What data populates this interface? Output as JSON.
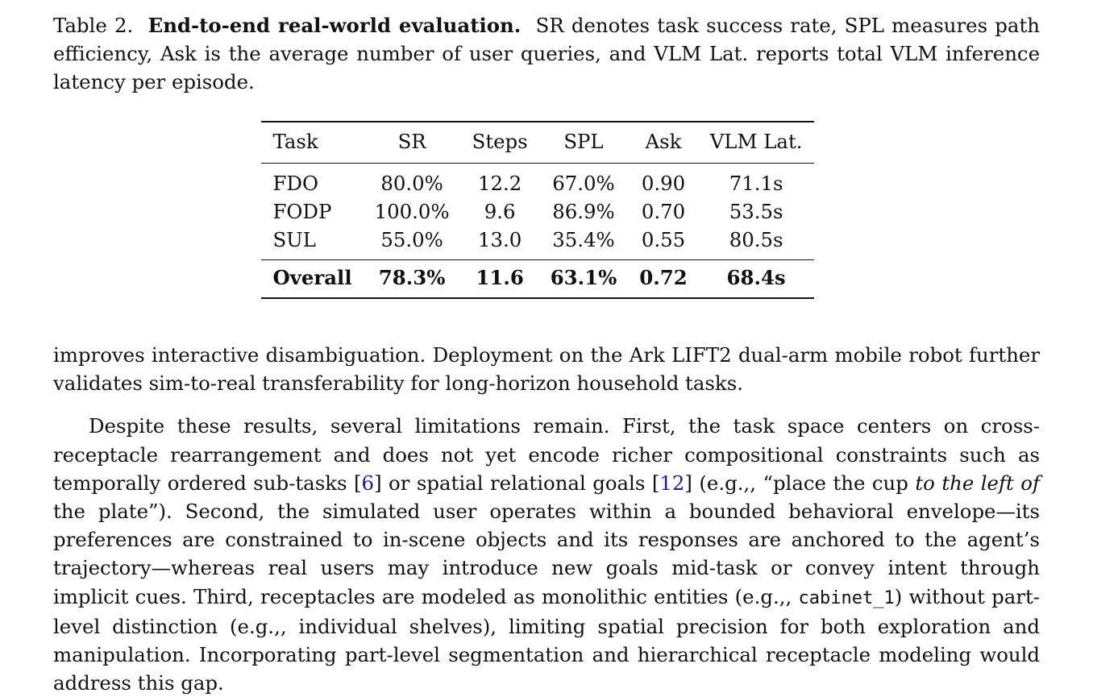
{
  "caption": {
    "label": "Table 2.",
    "title": "End-to-end real-world evaluation.",
    "text": "SR denotes task success rate, SPL measures path efficiency, Ask is the average number of user queries, and VLM Lat. reports total VLM inference latency per episode."
  },
  "table": {
    "headers": [
      "Task",
      "SR",
      "Steps",
      "SPL",
      "Ask",
      "VLM Lat."
    ],
    "rows": [
      [
        "FDO",
        "80.0%",
        "12.2",
        "67.0%",
        "0.90",
        "71.1s"
      ],
      [
        "FODP",
        "100.0%",
        "9.6",
        "86.9%",
        "0.70",
        "53.5s"
      ],
      [
        "SUL",
        "55.0%",
        "13.0",
        "35.4%",
        "0.55",
        "80.5s"
      ]
    ],
    "overall": [
      "Overall",
      "78.3%",
      "11.6",
      "63.1%",
      "0.72",
      "68.4s"
    ]
  },
  "paragraph1": "improves interactive disambiguation. Deployment on the Ark LIFT2 dual-arm mobile robot further validates sim-to-real transferability for long-horizon household tasks.",
  "paragraph2": {
    "part1": "Despite these results, several limitations remain. First, the task space centers on cross-receptacle rearrangement and does not yet encode richer compositional constraints such as temporally ordered sub-tasks [",
    "cite1": "6",
    "part2": "] or spatial relational goals [",
    "cite2": "12",
    "part3": "] (e.g.,, “place the cup ",
    "italic": "to the left of",
    "part4": " the plate”). Second, the simulated user operates within a bounded behavioral envelope—its preferences are constrained to in-scene objects and its responses are anchored to the agent’s trajectory—whereas real users may introduce new goals mid-task or convey intent through implicit cues. Third, receptacles are modeled as monolithic entities (e.g.,, ",
    "code": "cabinet_1",
    "part5": ") without part-level distinction (e.g.,, individual shelves), limiting spatial precision for both exploration and manipulation. Incorporating part-level segmentation and hierarchical receptacle modeling would address this gap."
  }
}
